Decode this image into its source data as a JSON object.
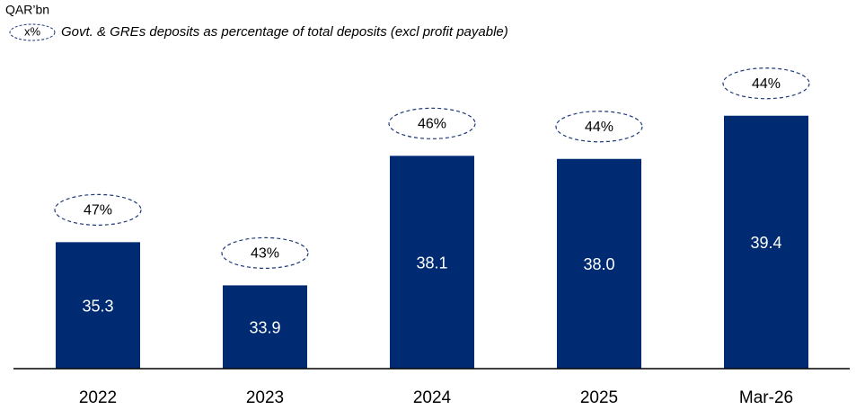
{
  "chart_data": {
    "type": "bar",
    "unit_label": "QAR’bn",
    "legend_marker": "x%",
    "categories": [
      "2022",
      "2023",
      "2024",
      "2025",
      "Mar-26"
    ],
    "values": [
      35.3,
      33.9,
      38.1,
      38.0,
      39.4
    ],
    "value_labels": [
      "35.3",
      "33.9",
      "38.1",
      "38.0",
      "39.4"
    ],
    "color": "#002b73",
    "ylim": [
      31.2,
      40.8
    ],
    "ratio": {
      "name": "Govt. & GREs deposits as percentage of total deposits  (excl profit payable)",
      "values": [
        47,
        43,
        46,
        44,
        44
      ],
      "value_labels": [
        "47%",
        "43%",
        "46%",
        "44%",
        "44%"
      ],
      "color": "#1f3a7a"
    }
  }
}
